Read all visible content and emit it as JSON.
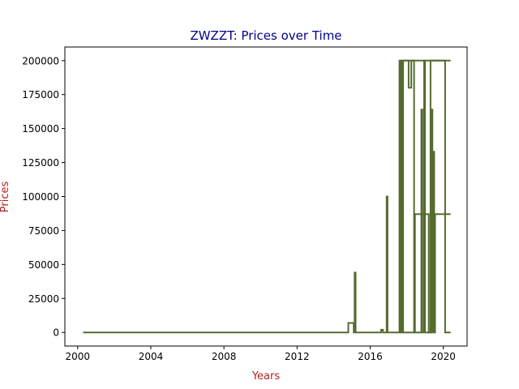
{
  "chart_data": {
    "type": "line",
    "title": "ZWZZT: Prices over Time",
    "xlabel": "Years",
    "ylabel": "Prices",
    "title_color": "#00008b",
    "label_color": "#b22222",
    "line_color": "#556b2f",
    "xlim": [
      1999.3,
      2021.3
    ],
    "ylim": [
      -10000,
      210000
    ],
    "xticks": [
      2000,
      2004,
      2008,
      2012,
      2016,
      2020
    ],
    "yticks": [
      0,
      25000,
      50000,
      75000,
      100000,
      125000,
      150000,
      175000,
      200000
    ],
    "grid": false,
    "legend": "none",
    "series": [
      {
        "values": [
          [
            2000.3,
            0
          ],
          [
            2014.8,
            0
          ],
          [
            2014.8,
            7000
          ],
          [
            2015.1,
            7000
          ],
          [
            2015.1,
            0
          ],
          [
            2015.15,
            0
          ],
          [
            2015.15,
            44000
          ],
          [
            2015.2,
            44000
          ],
          [
            2015.2,
            0
          ],
          [
            2016.6,
            0
          ],
          [
            2016.6,
            2000
          ],
          [
            2016.7,
            2000
          ],
          [
            2016.7,
            0
          ],
          [
            2016.9,
            0
          ],
          [
            2016.9,
            100000
          ],
          [
            2016.95,
            100000
          ],
          [
            2016.95,
            0
          ],
          [
            2017.6,
            0
          ],
          [
            2017.6,
            200000
          ],
          [
            2017.63,
            200000
          ],
          [
            2017.63,
            0
          ],
          [
            2017.66,
            0
          ],
          [
            2017.66,
            200000
          ],
          [
            2017.69,
            200000
          ],
          [
            2017.69,
            0
          ],
          [
            2017.72,
            0
          ],
          [
            2017.72,
            200000
          ],
          [
            2017.76,
            200000
          ],
          [
            2017.76,
            0
          ],
          [
            2017.8,
            0
          ],
          [
            2017.8,
            200000
          ],
          [
            2018.1,
            200000
          ],
          [
            2018.1,
            180000
          ],
          [
            2018.25,
            180000
          ],
          [
            2018.25,
            200000
          ],
          [
            2018.4,
            200000
          ],
          [
            2018.4,
            0
          ],
          [
            2018.45,
            0
          ],
          [
            2018.45,
            87000
          ],
          [
            2019.2,
            87000
          ],
          [
            2019.2,
            0
          ],
          [
            2019.3,
            0
          ],
          [
            2019.3,
            200000
          ],
          [
            2020.1,
            200000
          ],
          [
            2020.1,
            0
          ],
          [
            2020.4,
            0
          ]
        ]
      },
      {
        "values": [
          [
            2017.8,
            0
          ],
          [
            2018.8,
            0
          ],
          [
            2018.8,
            164000
          ],
          [
            2018.85,
            164000
          ],
          [
            2018.85,
            0
          ],
          [
            2018.95,
            0
          ],
          [
            2018.95,
            200000
          ],
          [
            2019.0,
            200000
          ],
          [
            2019.0,
            0
          ],
          [
            2019.35,
            0
          ],
          [
            2019.35,
            164000
          ],
          [
            2019.4,
            164000
          ],
          [
            2019.4,
            0
          ],
          [
            2019.45,
            0
          ],
          [
            2019.45,
            133000
          ],
          [
            2019.5,
            133000
          ],
          [
            2019.5,
            0
          ],
          [
            2019.55,
            0
          ],
          [
            2019.55,
            87000
          ],
          [
            2020.4,
            87000
          ]
        ]
      },
      {
        "values": [
          [
            2017.7,
            0
          ],
          [
            2017.7,
            200000
          ],
          [
            2020.4,
            200000
          ]
        ]
      }
    ]
  }
}
